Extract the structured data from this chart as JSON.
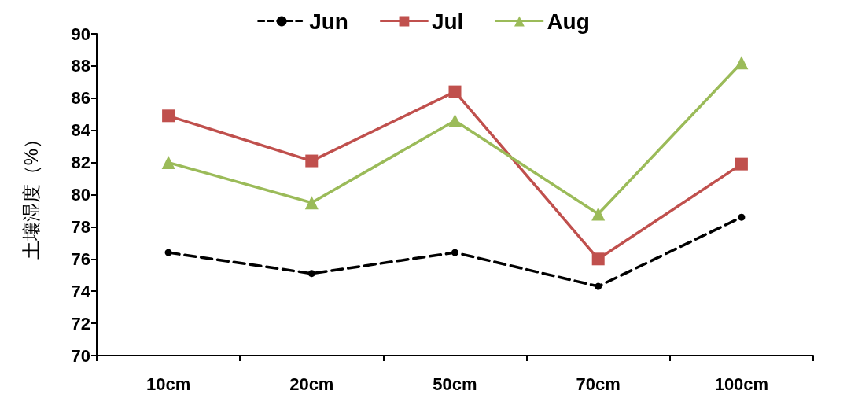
{
  "chart_data": {
    "type": "line",
    "ylabel": "土壤湿度（%）",
    "categories": [
      "10cm",
      "20cm",
      "50cm",
      "70cm",
      "100cm"
    ],
    "series": [
      {
        "name": "Jun",
        "color": "#000000",
        "marker": "circle",
        "line_style": "dashed",
        "values": [
          76.4,
          75.1,
          76.4,
          74.3,
          78.6
        ]
      },
      {
        "name": "Jul",
        "color": "#c0504d",
        "marker": "square",
        "line_style": "solid",
        "values": [
          84.9,
          82.1,
          86.4,
          76.0,
          81.9
        ]
      },
      {
        "name": "Aug",
        "color": "#9bbb59",
        "marker": "triangle",
        "line_style": "solid",
        "values": [
          82.0,
          79.5,
          84.6,
          78.8,
          88.2
        ]
      }
    ],
    "ylim": [
      70,
      90
    ],
    "yticks": [
      70,
      72,
      74,
      76,
      78,
      80,
      82,
      84,
      86,
      88,
      90
    ],
    "grid": false,
    "legend": "top"
  }
}
